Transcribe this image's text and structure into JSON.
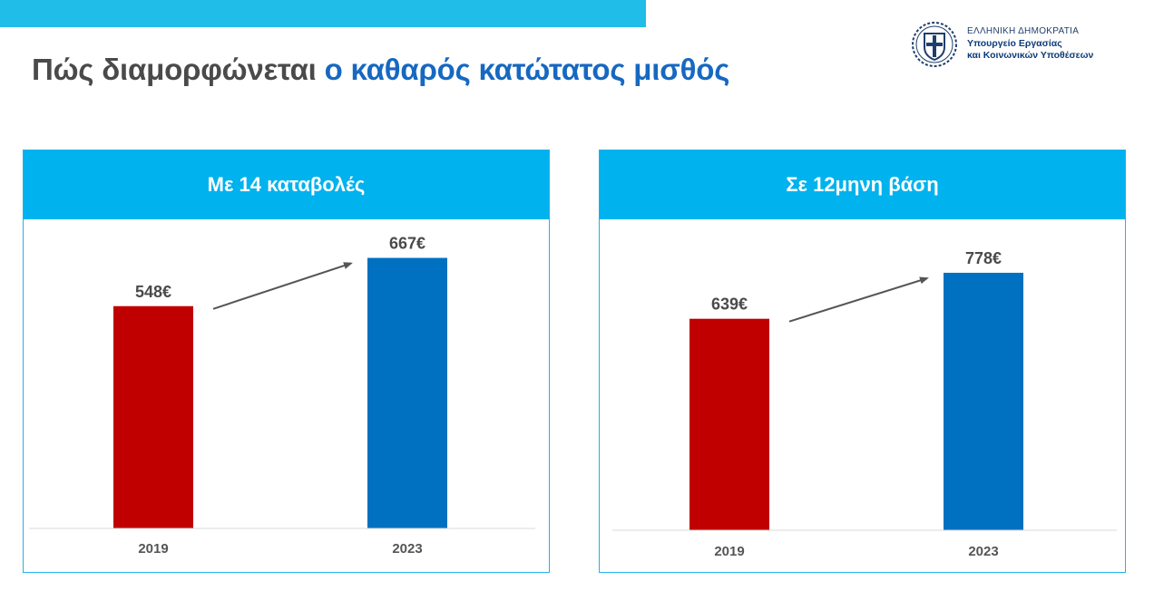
{
  "title": {
    "part1": "Πώς διαμορφώνεται",
    "part2": "ο καθαρός κατώτατος μισθός"
  },
  "ministry": {
    "line1": "ΕΛΛΗΝΙΚΗ ΔΗΜΟΚΡΑΤΙΑ",
    "line2": "Υπουργείο Εργασίας",
    "line3": "και Κοινωνικών Υποθέσεων"
  },
  "colors": {
    "top_bar": "#20bde9",
    "header": "#00b2ee",
    "bar_2019": "#c00000",
    "bar_2023": "#0070c0",
    "title_blue": "#1668c1"
  },
  "chart_data": [
    {
      "type": "bar",
      "title": "Με 14 καταβολές",
      "categories": [
        "2019",
        "2023"
      ],
      "values": [
        548,
        667
      ],
      "value_labels": [
        "548€",
        "667€"
      ],
      "colors": [
        "#c00000",
        "#0070c0"
      ],
      "grid": false,
      "annotations": [
        {
          "type": "arrow",
          "from": "2019",
          "to": "2023"
        }
      ]
    },
    {
      "type": "bar",
      "title": "Σε 12μηνη βάση",
      "categories": [
        "2019",
        "2023"
      ],
      "values": [
        639,
        778
      ],
      "value_labels": [
        "639€",
        "778€"
      ],
      "colors": [
        "#c00000",
        "#0070c0"
      ],
      "grid": false,
      "annotations": [
        {
          "type": "arrow",
          "from": "2019",
          "to": "2023"
        }
      ]
    }
  ]
}
